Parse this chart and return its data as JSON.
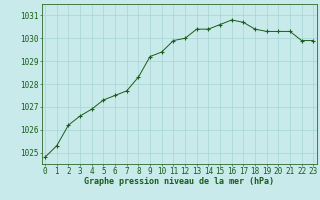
{
  "x": [
    0,
    1,
    2,
    3,
    4,
    5,
    6,
    7,
    8,
    9,
    10,
    11,
    12,
    13,
    14,
    15,
    16,
    17,
    18,
    19,
    20,
    21,
    22,
    23
  ],
  "y": [
    1024.8,
    1025.3,
    1026.2,
    1026.6,
    1026.9,
    1027.3,
    1027.5,
    1027.7,
    1028.3,
    1029.2,
    1029.4,
    1029.9,
    1030.0,
    1030.4,
    1030.4,
    1030.6,
    1030.8,
    1030.7,
    1030.4,
    1030.3,
    1030.3,
    1030.3,
    1029.9,
    1029.9
  ],
  "line_color": "#1a5c1a",
  "marker": "+",
  "marker_color": "#1a5c1a",
  "bg_color": "#c8eaea",
  "grid_color": "#a8d4d4",
  "border_color": "#2d6a2d",
  "xlabel": "Graphe pression niveau de la mer (hPa)",
  "xlabel_color": "#1a5c1a",
  "xlabel_fontsize": 6.0,
  "tick_label_color": "#1a5c1a",
  "tick_fontsize": 5.5,
  "ylim": [
    1024.5,
    1031.5
  ],
  "yticks": [
    1025,
    1026,
    1027,
    1028,
    1029,
    1030,
    1031
  ],
  "xticks": [
    0,
    1,
    2,
    3,
    4,
    5,
    6,
    7,
    8,
    9,
    10,
    11,
    12,
    13,
    14,
    15,
    16,
    17,
    18,
    19,
    20,
    21,
    22,
    23
  ],
  "figsize": [
    3.2,
    2.0
  ],
  "dpi": 100
}
